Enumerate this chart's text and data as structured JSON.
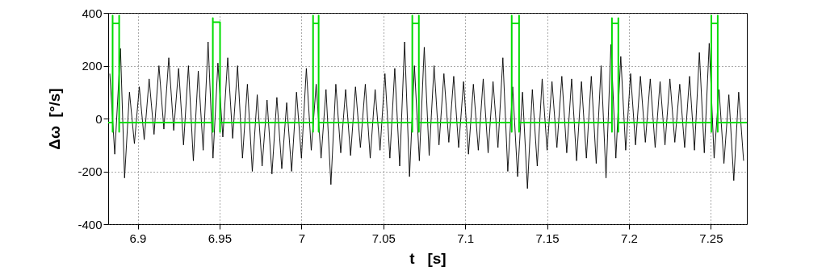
{
  "chart_data": {
    "type": "line",
    "xlabel": "t   [s]",
    "ylabel": "Δω  [°/s]",
    "xlim": [
      6.882,
      7.272
    ],
    "xticks": [
      6.9,
      6.95,
      7,
      7.05,
      7.1,
      7.15,
      7.2,
      7.25
    ],
    "ylim": [
      -400,
      400
    ],
    "yticks": [
      -400,
      -200,
      0,
      200,
      400
    ],
    "grid": true,
    "series": [
      {
        "color": "#000000",
        "x": [
          6.883,
          6.886,
          6.8895,
          6.892,
          6.895,
          6.898,
          6.901,
          6.904,
          6.907,
          6.91,
          6.913,
          6.916,
          6.919,
          6.922,
          6.925,
          6.928,
          6.931,
          6.934,
          6.937,
          6.94,
          6.943,
          6.946,
          6.949,
          6.952,
          6.955,
          6.958,
          6.961,
          6.964,
          6.967,
          6.97,
          6.973,
          6.976,
          6.979,
          6.982,
          6.985,
          6.988,
          6.991,
          6.994,
          6.997,
          7.0,
          7.003,
          7.006,
          7.009,
          7.012,
          7.015,
          7.018,
          7.021,
          7.024,
          7.027,
          7.03,
          7.033,
          7.036,
          7.039,
          7.042,
          7.045,
          7.048,
          7.051,
          7.054,
          7.057,
          7.06,
          7.063,
          7.066,
          7.069,
          7.072,
          7.075,
          7.078,
          7.081,
          7.084,
          7.087,
          7.09,
          7.093,
          7.096,
          7.099,
          7.102,
          7.105,
          7.108,
          7.111,
          7.114,
          7.117,
          7.12,
          7.123,
          7.126,
          7.129,
          7.132,
          7.135,
          7.138,
          7.141,
          7.144,
          7.147,
          7.15,
          7.153,
          7.156,
          7.159,
          7.162,
          7.165,
          7.168,
          7.171,
          7.174,
          7.177,
          7.18,
          7.183,
          7.186,
          7.189,
          7.192,
          7.195,
          7.198,
          7.201,
          7.204,
          7.207,
          7.21,
          7.213,
          7.216,
          7.219,
          7.222,
          7.225,
          7.228,
          7.231,
          7.234,
          7.237,
          7.24,
          7.243,
          7.246,
          7.249,
          7.252,
          7.255,
          7.258,
          7.261,
          7.264,
          7.267,
          7.27
        ],
        "values": [
          170,
          -135,
          265,
          -225,
          100,
          -95,
          120,
          -80,
          150,
          -60,
          200,
          -40,
          230,
          -45,
          190,
          -100,
          200,
          -160,
          180,
          -120,
          290,
          -150,
          210,
          -70,
          230,
          -75,
          200,
          -150,
          130,
          -200,
          90,
          -180,
          70,
          -210,
          80,
          -190,
          60,
          -200,
          100,
          -150,
          190,
          -120,
          130,
          -150,
          110,
          -250,
          130,
          -130,
          110,
          -140,
          120,
          -110,
          130,
          -150,
          110,
          -120,
          170,
          -150,
          190,
          -180,
          290,
          -220,
          200,
          -160,
          270,
          -140,
          200,
          -100,
          170,
          -90,
          160,
          -110,
          140,
          -135,
          130,
          -120,
          150,
          -130,
          140,
          -110,
          230,
          -200,
          120,
          -220,
          100,
          -265,
          110,
          -180,
          150,
          -120,
          140,
          -110,
          160,
          -130,
          150,
          -160,
          140,
          -150,
          160,
          -170,
          200,
          -225,
          280,
          -150,
          235,
          -120,
          170,
          -100,
          160,
          -90,
          150,
          -110,
          140,
          -100,
          150,
          -90,
          130,
          -110,
          160,
          -120,
          250,
          -130,
          285,
          -150,
          110,
          -170,
          90,
          -235,
          100,
          -160
        ]
      },
      {
        "color": "#00dd00",
        "x": [
          6.882,
          6.8847,
          6.8847,
          6.8847,
          6.8847,
          6.8887,
          6.8887,
          6.8887,
          6.8887,
          6.9459,
          6.9459,
          6.9459,
          6.9459,
          6.9503,
          6.9503,
          6.9503,
          6.9503,
          7.0071,
          7.0071,
          7.0071,
          7.0071,
          7.0105,
          7.0105,
          7.0105,
          7.0105,
          7.0677,
          7.0677,
          7.0677,
          7.0677,
          7.0717,
          7.0717,
          7.0717,
          7.0717,
          7.1284,
          7.1284,
          7.1284,
          7.1284,
          7.1329,
          7.1329,
          7.1329,
          7.1329,
          7.1896,
          7.1896,
          7.1896,
          7.1896,
          7.1935,
          7.1935,
          7.1935,
          7.1935,
          7.2503,
          7.2503,
          7.2503,
          7.2503,
          7.2542,
          7.2542,
          7.2542,
          7.2542,
          7.272
        ],
        "values": [
          -15,
          -15,
          -50,
          390,
          360,
          360,
          390,
          -50,
          -15,
          -15,
          -50,
          380,
          365,
          365,
          365,
          -50,
          -15,
          -15,
          -50,
          390,
          360,
          360,
          390,
          -50,
          -15,
          -15,
          -50,
          390,
          360,
          360,
          390,
          -50,
          -15,
          -15,
          -50,
          390,
          360,
          360,
          390,
          -50,
          -15,
          -15,
          -50,
          380,
          360,
          360,
          380,
          -50,
          -15,
          -15,
          -50,
          390,
          360,
          360,
          390,
          -50,
          -15,
          -15
        ]
      }
    ]
  }
}
